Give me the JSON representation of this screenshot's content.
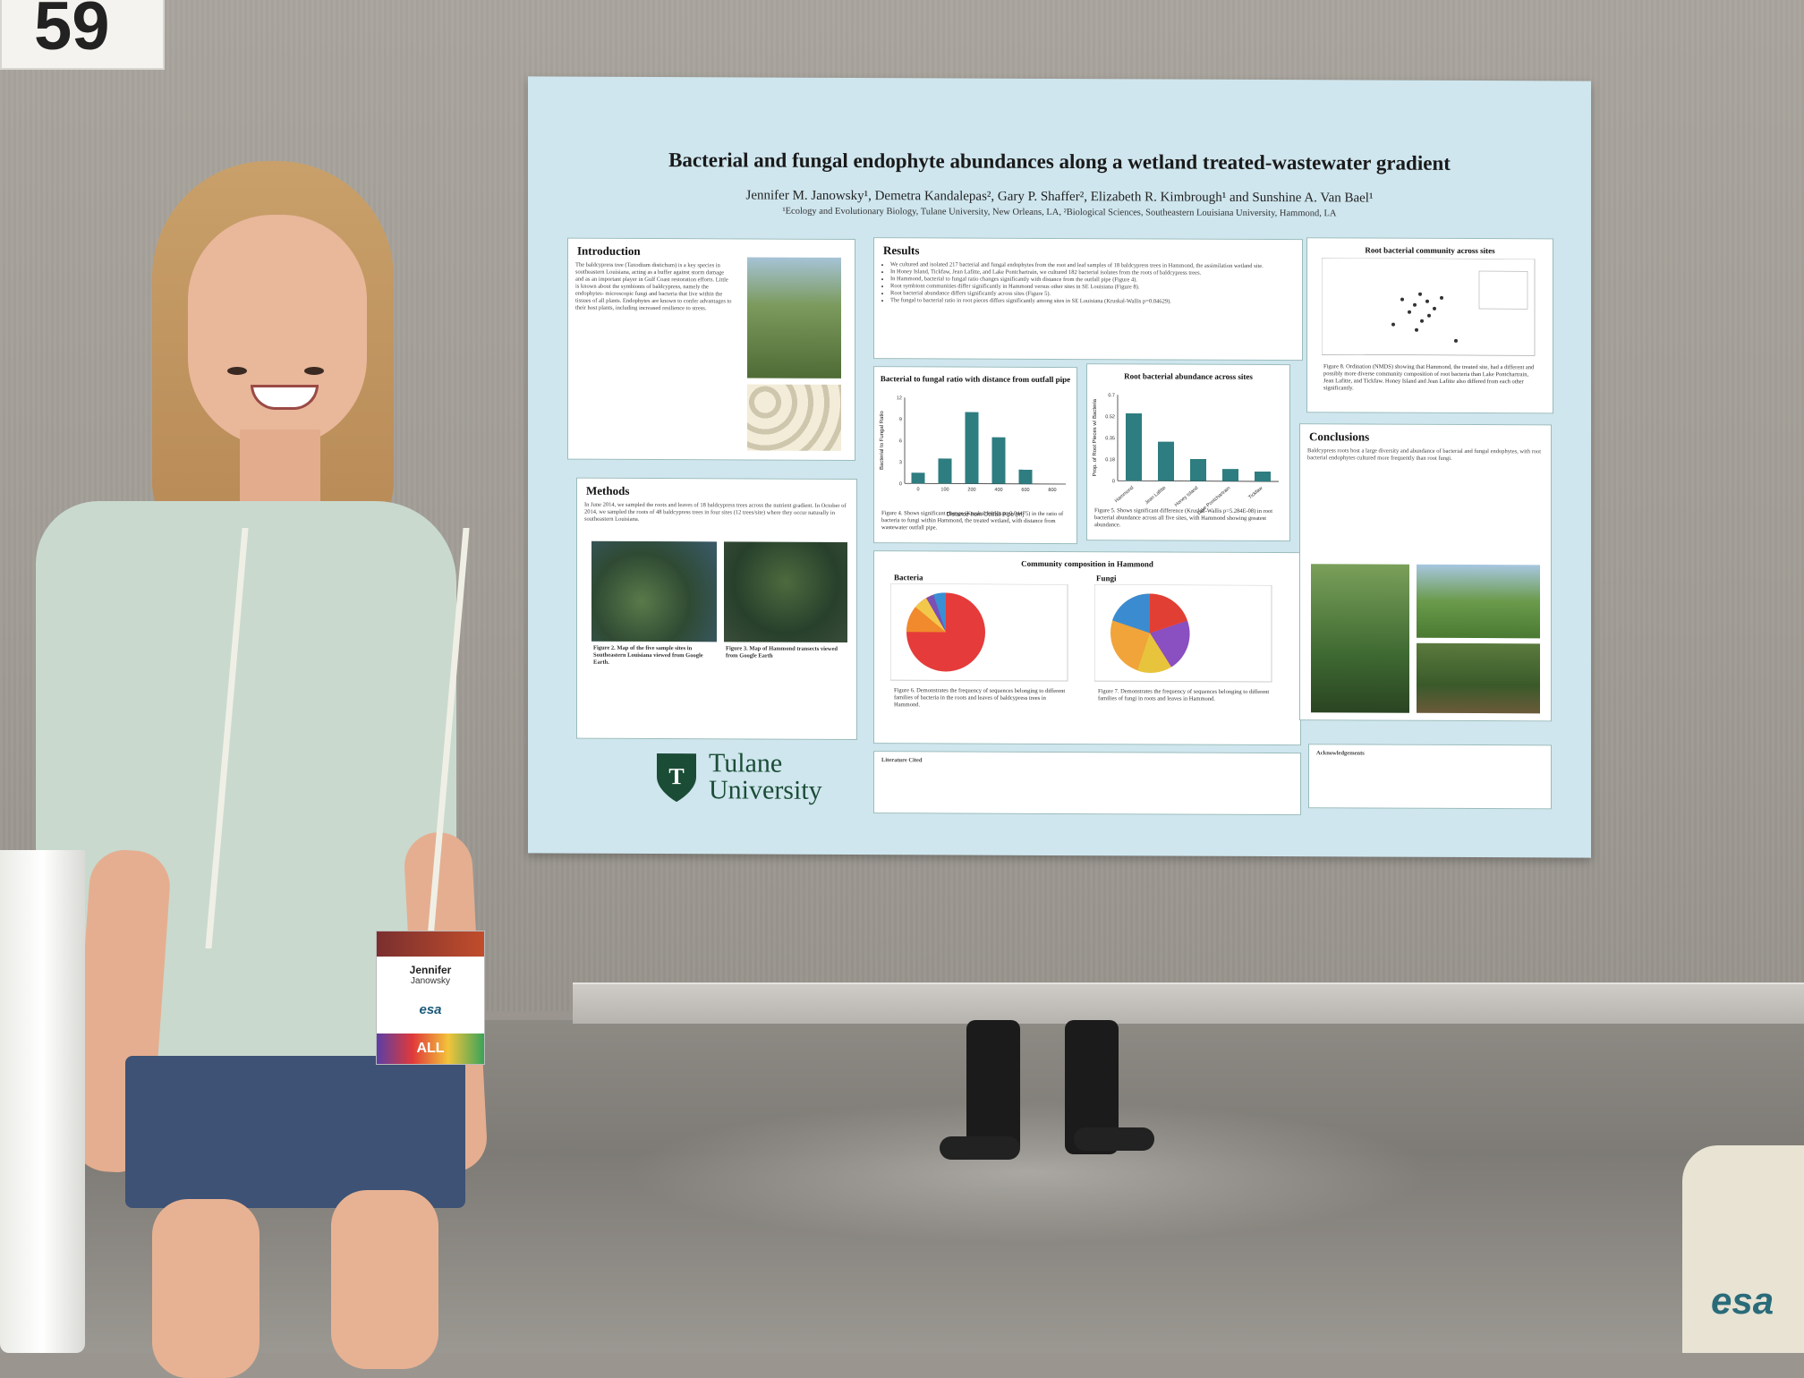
{
  "scene": {
    "booth_number": "59"
  },
  "poster": {
    "title": "Bacterial and fungal endophyte abundances along a wetland treated-wastewater gradient",
    "authors": "Jennifer M. Janowsky¹, Demetra Kandalepas², Gary P. Shaffer², Elizabeth R. Kimbrough¹ and Sunshine A. Van Bael¹",
    "affiliations": "¹Ecology and Evolutionary Biology, Tulane University, New Orleans, LA, ²Biological Sciences, Southeastern Louisiana University, Hammond, LA",
    "sections": {
      "introduction": "Introduction",
      "methods": "Methods",
      "results": "Results",
      "conclusions": "Conclusions",
      "literature": "Literature Cited",
      "acknowledgements": "Acknowledgements"
    },
    "intro_text": "The baldcypress tree (Taxodium distichum) is a key species in southeastern Louisiana, acting as a buffer against storm damage and as an important player in Gulf Coast restoration efforts. Little is known about the symbionts of baldcypress, namely the endophytes- microscopic fungi and bacteria that live within the tissues of all plants. Endophytes are known to confer advantages to their host plants, including increased resilience to stress.",
    "methods_text": "In June 2014, we sampled the roots and leaves of 18 baldcypress trees across the nutrient gradient. In October of 2014, we sampled the roots of 48 baldcypress trees in four sites (12 trees/site) where they occur naturally in southeastern Louisiana.",
    "results_items": [
      "We cultured and isolated 217 bacterial and fungal endophytes from the root and leaf samples of 18 baldcypress trees in Hammond, the assimilation wetland site.",
      "In Honey Island, Tickfaw, Jean Lafitte, and Lake Pontchartrain, we cultured 182 bacterial isolates from the roots of baldcypress trees.",
      "In Hammond, bacterial to fungal ratio changes significantly with distance from the outfall pipe (Figure 4).",
      "Root symbiont communities differ significantly in Hammond versus other sites in SE Louisiana (Figure 8).",
      "Root bacterial abundance differs significantly across sites (Figure 5).",
      "The fungal to bacterial ratio in root pieces differs significantly among sites in SE Louisiana (Kruskal-Wallis p=0.04629)."
    ],
    "conclusions_text": "Baldcypress roots host a large diversity and abundance of bacterial and fungal endophytes, with root bacterial endophytes cultured more frequently than root fungi.",
    "fig2_caption": "Figure 2. Map of the five sample sites in Southeastern Louisiana viewed from Google Earth.",
    "fig3_caption": "Figure 3. Map of Hammond transects viewed from Google Earth",
    "fig4_title": "Bacterial to fungal ratio with distance from outfall pipe",
    "fig4_caption": "Figure 4. Shows significant change (Kruskal-Wallis p=0.04475) in the ratio of bacteria to fungi within Hammond, the treated wetland, with distance from wastewater outfall pipe.",
    "fig4_xlabel": "Distance from Outfall Pipe (m)",
    "fig4_ylabel": "Bacterial to Fungal Ratio",
    "fig5_title": "Root bacterial abundance across sites",
    "fig5_caption": "Figure 5. Shows significant difference (Kruskal-Wallis p=5.284E-08) in root bacterial abundance across all five sites, with Hammond showing greatest abundance.",
    "fig5_ylabel": "Prop. of Root Pieces w/ Bacteria",
    "fig8_title": "Root bacterial community across sites",
    "fig8_caption": "Figure 8. Ordination (NMDS) showing that Hammond, the treated site, had a different and possibly more diverse community composition of root bacteria than Lake Pontchartrain, Jean Lafitte, and Tickfaw. Honey Island and Jean Lafitte also differed from each other significantly.",
    "community_title": "Community composition in Hammond",
    "bacteria_label": "Bacteria",
    "fungi_label": "Fungi",
    "fig6_caption": "Figure 6. Demonstrates the frequency of sequences belonging to different families of bacteria in the roots and leaves of baldcypress trees in Hammond.",
    "fig7_caption": "Figure 7. Demonstrates the frequency of sequences belonging to different families of fungi in roots and leaves in Hammond.",
    "logo_line1": "Tulane",
    "logo_line2": "University"
  },
  "chart_data": [
    {
      "type": "bar",
      "title": "Bacterial to fungal ratio with distance from outfall pipe",
      "xlabel": "Distance from Outfall Pipe (m)",
      "ylabel": "Bacterial to Fungal Ratio",
      "categories": [
        "0",
        "100",
        "200",
        "400",
        "600",
        "800"
      ],
      "values": [
        1.5,
        3.5,
        10.0,
        6.5,
        2.0,
        0
      ],
      "ylim": [
        0,
        12
      ]
    },
    {
      "type": "bar",
      "title": "Root bacterial abundance across sites",
      "ylabel": "Prop. of Root Pieces w/ Bacteria",
      "categories": [
        "Hammond",
        "Jean Lafitte",
        "Honey Island",
        "Lake Pontchartrain",
        "Tickfaw"
      ],
      "values": [
        0.55,
        0.32,
        0.18,
        0.1,
        0.08
      ],
      "ylim": [
        0,
        0.7
      ]
    }
  ],
  "person": {
    "badge_name_first": "Jennifer",
    "badge_name_last": "Janowsky",
    "badge_org": "esa",
    "badge_footer": "ALL"
  },
  "colors": {
    "poster_bg": "#cfe6ee",
    "bar_teal": "#2e7d80",
    "tulane_green": "#1b4d36"
  }
}
